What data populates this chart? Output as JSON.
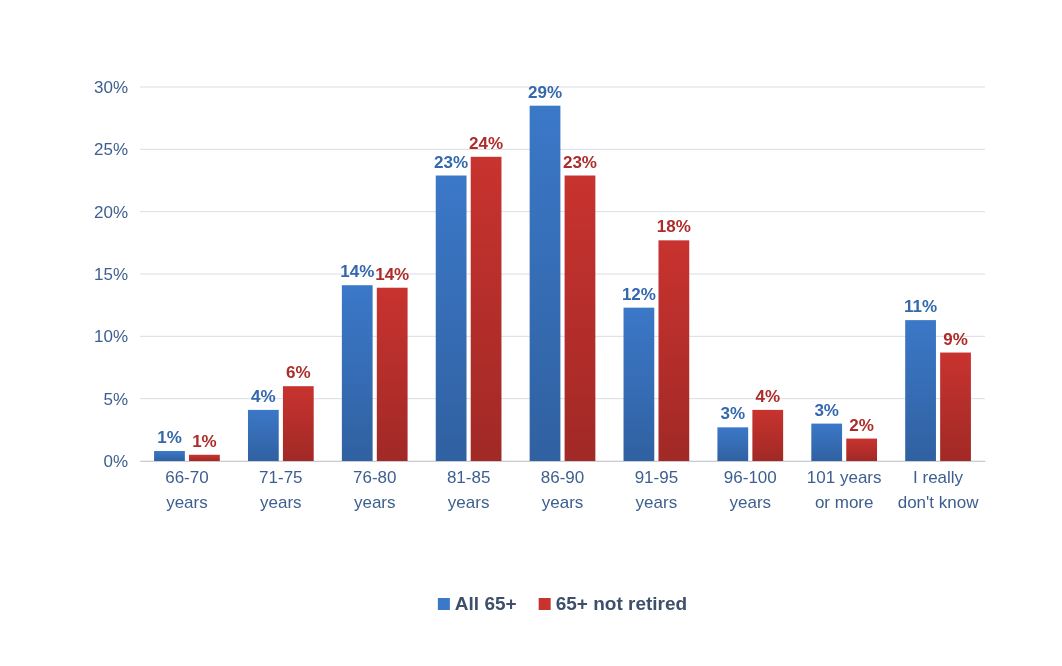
{
  "chart_data": {
    "type": "bar",
    "categories": [
      "66-70 years",
      "71-75 years",
      "76-80 years",
      "81-85 years",
      "86-90 years",
      "91-95 years",
      "96-100 years",
      "101 years or more",
      "I really don't know"
    ],
    "series": [
      {
        "name": "All 65+",
        "color": "#3b78c8",
        "values": [
          0.8,
          4.1,
          14.1,
          22.9,
          28.5,
          12.3,
          2.7,
          3.0,
          11.3
        ],
        "value_labels": [
          "1%",
          "4%",
          "14%",
          "23%",
          "29%",
          "12%",
          "3%",
          "3%",
          "11%"
        ]
      },
      {
        "name": "65+ not retired",
        "color": "#c8332f",
        "values": [
          0.5,
          6.0,
          13.9,
          24.4,
          22.9,
          17.7,
          4.1,
          1.8,
          8.7
        ],
        "value_labels": [
          "1%",
          "6%",
          "14%",
          "24%",
          "23%",
          "18%",
          "4%",
          "2%",
          "9%"
        ]
      }
    ],
    "ylim": [
      0,
      30
    ],
    "yticks": [
      {
        "value": 0,
        "label": "0%"
      },
      {
        "value": 5,
        "label": "5%"
      },
      {
        "value": 10,
        "label": "10%"
      },
      {
        "value": 15,
        "label": "15%"
      },
      {
        "value": 20,
        "label": "20%"
      },
      {
        "value": 25,
        "label": "25%"
      },
      {
        "value": 30,
        "label": "30%"
      }
    ],
    "grid": "y",
    "legend": "bottom"
  }
}
